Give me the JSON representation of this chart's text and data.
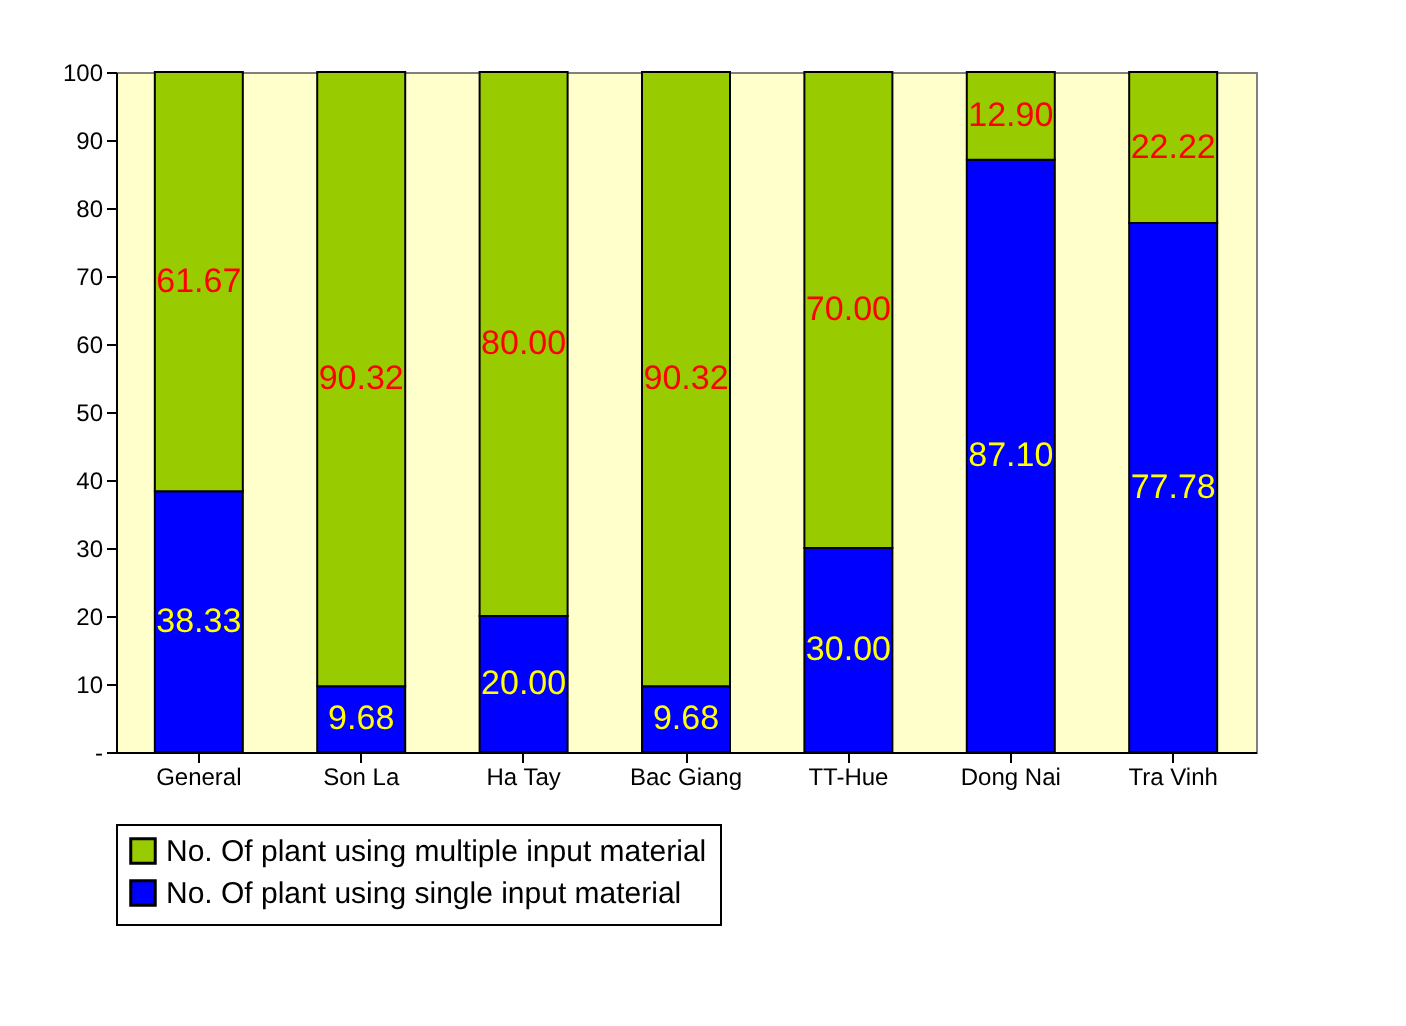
{
  "chart_data": {
    "type": "bar",
    "stacked": true,
    "categories": [
      "General",
      "Son La",
      "Ha Tay",
      "Bac Giang",
      "TT-Hue",
      "Dong Nai",
      "Tra Vinh"
    ],
    "series": [
      {
        "name": "No. Of plant using single input material",
        "color": "#0000ff",
        "values": [
          38.33,
          9.68,
          20.0,
          9.68,
          30.0,
          87.1,
          77.78
        ],
        "value_labels": [
          "38.33",
          "9.68",
          "20.00",
          "9.68",
          "30.00",
          "87.10",
          "77.78"
        ]
      },
      {
        "name": "No. Of plant using multiple input material",
        "color": "#99cc00",
        "values": [
          61.67,
          90.32,
          80.0,
          90.32,
          70.0,
          12.9,
          22.22
        ],
        "value_labels": [
          "61.67",
          "90.32",
          "80.00",
          "90.32",
          "70.00",
          "12.90",
          "22.22"
        ]
      }
    ],
    "ylim": [
      0,
      100
    ],
    "yticks": [
      {
        "value": 0,
        "label": "-"
      },
      10,
      20,
      30,
      40,
      50,
      60,
      70,
      80,
      90,
      100
    ],
    "grid": false,
    "legend": "bottom"
  }
}
